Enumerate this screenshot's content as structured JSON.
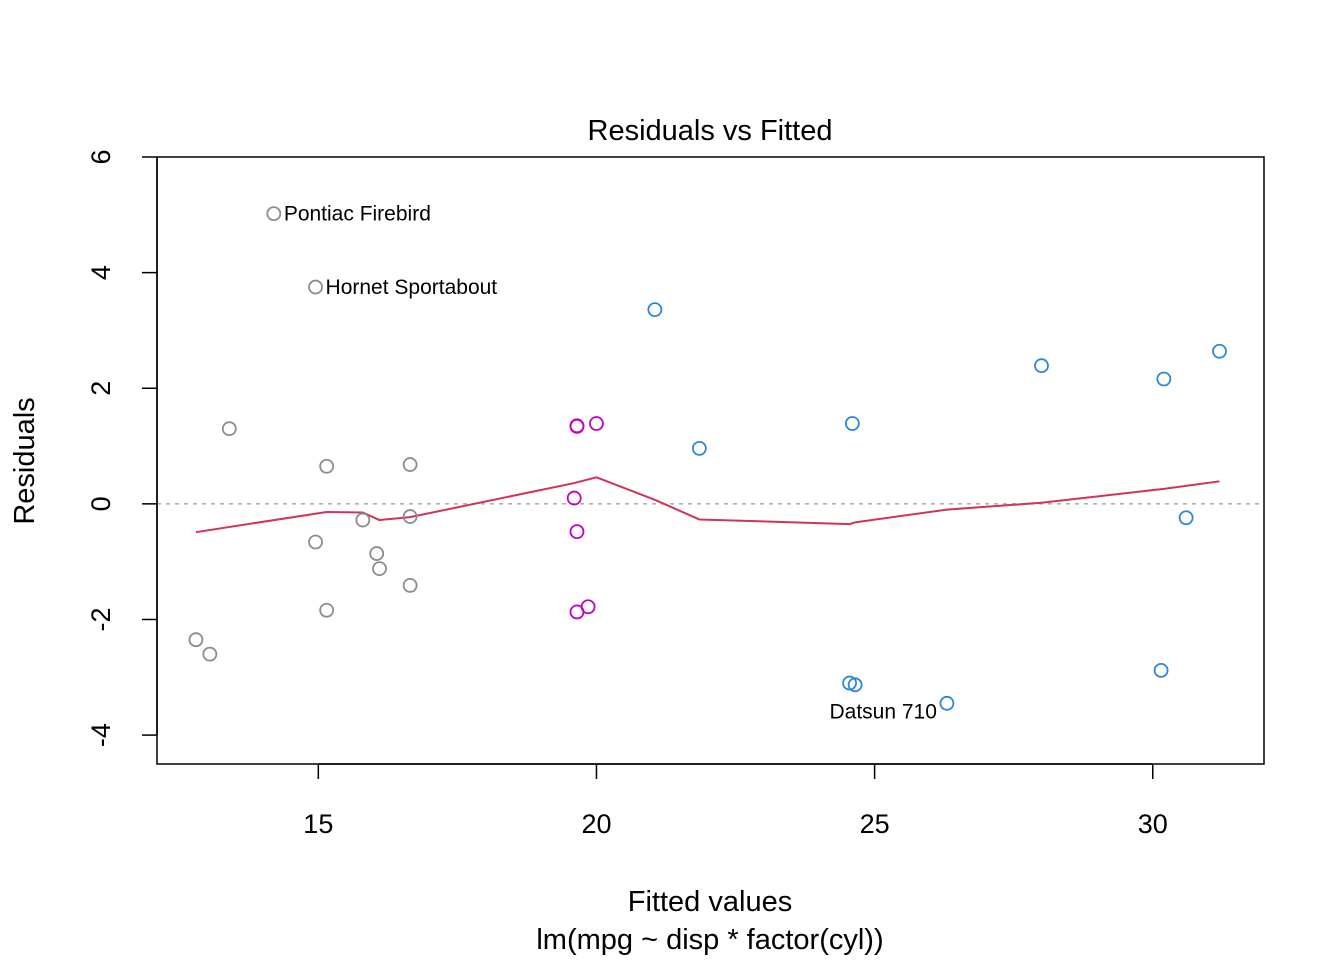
{
  "chart_data": {
    "type": "scatter",
    "title": "Residuals vs Fitted",
    "xlabel": "Fitted values",
    "xlabel_sub": "lm(mpg ~ disp * factor(cyl))",
    "ylabel": "Residuals",
    "xlim": [
      12.1,
      32.0
    ],
    "ylim": [
      -4.5,
      6.0
    ],
    "xticks": [
      15,
      20,
      25,
      30
    ],
    "yticks": [
      -4,
      -2,
      0,
      2,
      4,
      6
    ],
    "reference_line": 0,
    "colors": {
      "group_8cyl": "#8c8c8c",
      "group_6cyl": "#c200c2",
      "group_4cyl": "#2a86d8",
      "smoother": "#d03358",
      "reference": "#b0b0b0"
    },
    "series": [
      {
        "group": "8cyl",
        "color": "#8c8c8c",
        "x": [
          14.2,
          14.95,
          13.4,
          15.15,
          16.65,
          16.65,
          15.8,
          14.95,
          16.05,
          16.1,
          16.65,
          15.15,
          12.8,
          13.05
        ],
        "y": [
          5.02,
          3.75,
          1.3,
          0.65,
          0.68,
          -0.22,
          -0.28,
          -0.66,
          -0.86,
          -1.12,
          -1.41,
          -1.84,
          -2.35,
          -2.6
        ]
      },
      {
        "group": "6cyl",
        "color": "#c200c2",
        "x": [
          19.65,
          19.65,
          20.0,
          19.6,
          19.65,
          19.65,
          19.85
        ],
        "y": [
          1.34,
          1.35,
          1.39,
          0.1,
          -0.48,
          -1.87,
          -1.78
        ]
      },
      {
        "group": "4cyl",
        "color": "#2a86d8",
        "x": [
          21.05,
          21.85,
          24.6,
          28.0,
          30.2,
          31.2,
          30.6,
          24.55,
          24.65,
          26.3,
          30.15
        ],
        "y": [
          3.36,
          0.96,
          1.39,
          2.39,
          2.16,
          2.64,
          -0.24,
          -3.1,
          -3.13,
          -3.45,
          -2.88
        ]
      }
    ],
    "smoother": {
      "x": [
        12.8,
        15.15,
        15.8,
        16.1,
        16.65,
        19.6,
        20.0,
        21.05,
        21.85,
        24.55,
        24.65,
        26.3,
        28.0,
        30.2,
        31.2
      ],
      "y": [
        -0.49,
        -0.14,
        -0.15,
        -0.28,
        -0.23,
        0.36,
        0.46,
        0.07,
        -0.27,
        -0.35,
        -0.32,
        -0.1,
        0.02,
        0.26,
        0.39
      ]
    },
    "labels": [
      {
        "text": "Pontiac Firebird",
        "x": 14.2,
        "y": 5.02,
        "pos": "right"
      },
      {
        "text": "Hornet Sportabout",
        "x": 14.95,
        "y": 3.75,
        "pos": "right"
      },
      {
        "text": "Datsun 710",
        "x": 26.3,
        "y": -3.45,
        "pos": "left-below"
      }
    ]
  }
}
